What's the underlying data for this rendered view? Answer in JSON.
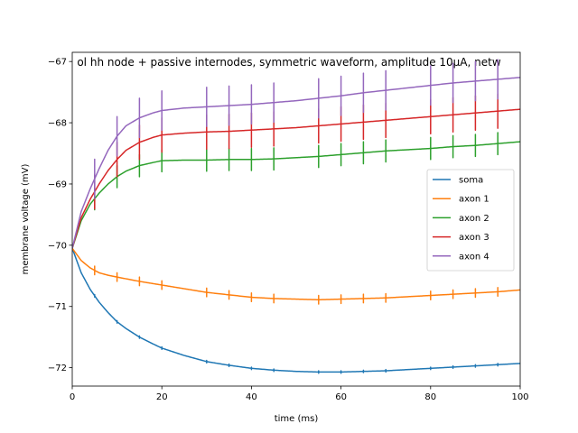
{
  "chart_data": {
    "type": "line",
    "title": "ol hh node + passive internodes, symmetric waveform, amplitude 10µA, netw",
    "xlabel": "time (ms)",
    "ylabel": "membrane voltage (mV)",
    "xlim": [
      0,
      100
    ],
    "ylim": [
      -72.3,
      -66.85
    ],
    "xticks": [
      0,
      20,
      40,
      60,
      80,
      100
    ],
    "yticks": [
      -72,
      -71,
      -70,
      -69,
      -68,
      -67
    ],
    "grid": false,
    "legend_position": "center-right",
    "spike_times": [
      5,
      10,
      15,
      20,
      30,
      35,
      40,
      45,
      55,
      60,
      65,
      70,
      80,
      85,
      90,
      95
    ],
    "series": [
      {
        "name": "soma",
        "color": "#1f77b4",
        "x": [
          0,
          2,
          4,
          6,
          8,
          10,
          12,
          15,
          18,
          20,
          25,
          30,
          35,
          40,
          45,
          50,
          55,
          60,
          65,
          70,
          75,
          80,
          85,
          90,
          95,
          100
        ],
        "y": [
          -70.05,
          -70.45,
          -70.72,
          -70.93,
          -71.1,
          -71.25,
          -71.36,
          -71.5,
          -71.61,
          -71.68,
          -71.8,
          -71.9,
          -71.96,
          -72.01,
          -72.04,
          -72.06,
          -72.07,
          -72.07,
          -72.06,
          -72.05,
          -72.03,
          -72.01,
          -71.99,
          -71.97,
          -71.95,
          -71.93
        ]
      },
      {
        "name": "axon 1",
        "color": "#ff7f0e",
        "x": [
          0,
          2,
          4,
          6,
          8,
          10,
          15,
          20,
          25,
          30,
          35,
          40,
          45,
          50,
          55,
          60,
          65,
          70,
          75,
          80,
          85,
          90,
          95,
          100
        ],
        "y": [
          -70.05,
          -70.25,
          -70.37,
          -70.45,
          -70.49,
          -70.52,
          -70.59,
          -70.65,
          -70.71,
          -70.77,
          -70.81,
          -70.85,
          -70.87,
          -70.88,
          -70.89,
          -70.88,
          -70.87,
          -70.86,
          -70.84,
          -70.82,
          -70.8,
          -70.78,
          -70.76,
          -70.73
        ]
      },
      {
        "name": "axon 2",
        "color": "#2ca02c",
        "x": [
          0,
          2,
          4,
          6,
          8,
          10,
          12,
          15,
          18,
          20,
          25,
          30,
          35,
          40,
          45,
          50,
          55,
          60,
          65,
          70,
          75,
          80,
          85,
          90,
          95,
          100
        ],
        "y": [
          -70.05,
          -69.6,
          -69.33,
          -69.15,
          -69.0,
          -68.88,
          -68.79,
          -68.7,
          -68.65,
          -68.62,
          -68.61,
          -68.61,
          -68.6,
          -68.6,
          -68.59,
          -68.57,
          -68.55,
          -68.52,
          -68.49,
          -68.46,
          -68.44,
          -68.42,
          -68.39,
          -68.37,
          -68.34,
          -68.31
        ]
      },
      {
        "name": "axon 3",
        "color": "#d62728",
        "x": [
          0,
          2,
          4,
          6,
          8,
          10,
          12,
          15,
          18,
          20,
          25,
          30,
          35,
          40,
          45,
          50,
          55,
          60,
          65,
          70,
          75,
          80,
          85,
          90,
          95,
          100
        ],
        "y": [
          -70.05,
          -69.55,
          -69.25,
          -69.0,
          -68.78,
          -68.6,
          -68.45,
          -68.32,
          -68.24,
          -68.2,
          -68.17,
          -68.15,
          -68.14,
          -68.12,
          -68.1,
          -68.08,
          -68.05,
          -68.02,
          -67.99,
          -67.96,
          -67.93,
          -67.9,
          -67.87,
          -67.84,
          -67.81,
          -67.78
        ]
      },
      {
        "name": "axon 4",
        "color": "#9467bd",
        "x": [
          0,
          2,
          4,
          6,
          8,
          10,
          12,
          15,
          18,
          20,
          25,
          30,
          35,
          40,
          45,
          50,
          55,
          60,
          65,
          70,
          75,
          80,
          85,
          90,
          95,
          100
        ],
        "y": [
          -70.05,
          -69.45,
          -69.08,
          -68.75,
          -68.45,
          -68.22,
          -68.05,
          -67.92,
          -67.84,
          -67.8,
          -67.76,
          -67.74,
          -67.72,
          -67.7,
          -67.67,
          -67.64,
          -67.6,
          -67.56,
          -67.51,
          -67.47,
          -67.43,
          -67.39,
          -67.35,
          -67.32,
          -67.29,
          -67.26
        ]
      }
    ]
  }
}
